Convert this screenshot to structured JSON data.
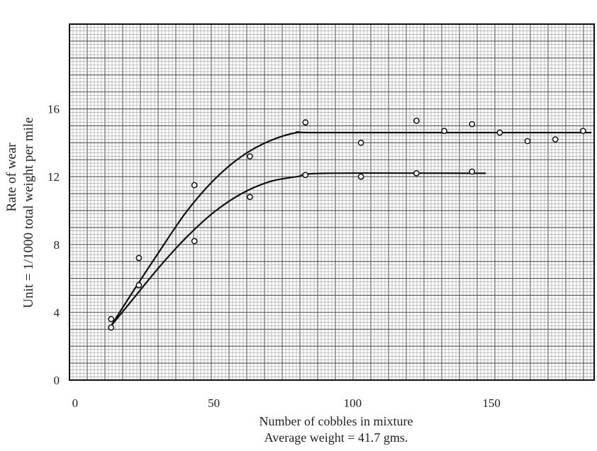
{
  "chart_data": {
    "type": "line",
    "title": "",
    "xlabel": "Number of cobbles in mixture",
    "subtitle": "Average weight = 41.7 gms.",
    "ylabel_lines": [
      "Rate of wear",
      "Unit = 1/1000 total weight per mile"
    ],
    "xlim": [
      -2,
      187
    ],
    "ylim": [
      0,
      21
    ],
    "x_ticks": [
      0,
      50,
      100,
      150
    ],
    "x_tick_labels": [
      "0",
      "50",
      "100",
      "150"
    ],
    "y_ticks": [
      0,
      4,
      8,
      12,
      16
    ],
    "y_tick_labels": [
      "0",
      "4",
      "8",
      "12",
      "16"
    ],
    "grid": true,
    "series": [
      {
        "curve": [
          [
            13,
            3.2
          ],
          [
            20,
            5.0
          ],
          [
            30,
            7.5
          ],
          [
            40,
            9.9
          ],
          [
            50,
            11.8
          ],
          [
            60,
            13.2
          ],
          [
            70,
            14.1
          ],
          [
            80,
            14.6
          ],
          [
            90,
            14.6
          ],
          [
            186,
            14.6
          ]
        ],
        "points": [
          [
            13,
            3.6
          ],
          [
            23,
            7.2
          ],
          [
            43,
            11.5
          ],
          [
            63,
            13.2
          ],
          [
            83,
            15.2
          ],
          [
            103,
            14.0
          ],
          [
            123,
            15.3
          ],
          [
            133,
            14.7
          ],
          [
            143,
            15.1
          ],
          [
            153,
            14.6
          ],
          [
            163,
            14.1
          ],
          [
            173,
            14.2
          ],
          [
            183,
            14.7
          ]
        ]
      },
      {
        "curve": [
          [
            13,
            3.2
          ],
          [
            20,
            4.6
          ],
          [
            30,
            6.6
          ],
          [
            40,
            8.4
          ],
          [
            50,
            9.9
          ],
          [
            60,
            11.0
          ],
          [
            70,
            11.7
          ],
          [
            80,
            12.0
          ],
          [
            90,
            12.2
          ],
          [
            148,
            12.2
          ]
        ],
        "points": [
          [
            13,
            3.1
          ],
          [
            23,
            5.6
          ],
          [
            43,
            8.2
          ],
          [
            63,
            10.8
          ],
          [
            83,
            12.1
          ],
          [
            103,
            12.0
          ],
          [
            123,
            12.2
          ],
          [
            143,
            12.3
          ]
        ]
      }
    ]
  }
}
